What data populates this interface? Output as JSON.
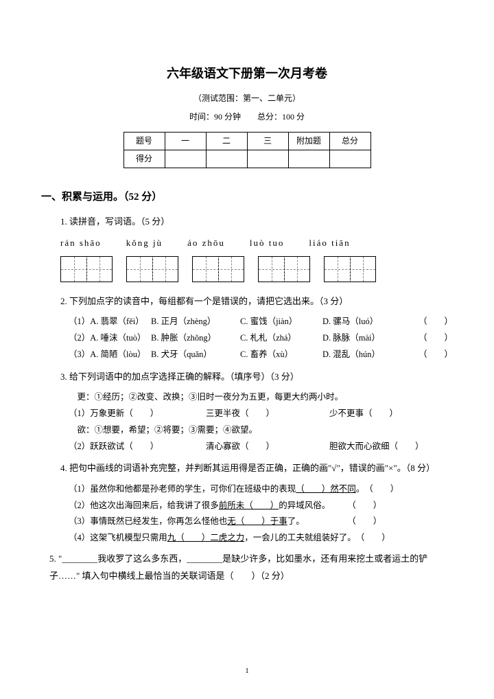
{
  "title": "六年级语文下册第一次月考卷",
  "subtitle": "（测试范围：第一、二单元）",
  "meta": "时间：90 分钟　　总分：100 分",
  "score_table": {
    "headers": [
      "题号",
      "一",
      "二",
      "三",
      "附加题",
      "总分"
    ],
    "row_label": "得分"
  },
  "section1": "一、积累与运用。（52 分）",
  "q1": {
    "text": "1. 读拼音，写词语。（5 分）",
    "pinyin": [
      "rán  shāo",
      "kǒng  jù",
      "áo  zhōu",
      "luò  tuo",
      "liáo  tiān"
    ]
  },
  "q2": {
    "text": "2. 下列加点字的读音中，每组都有一个是错误的，请把它选出来。（3 分）",
    "rows": [
      {
        "a": "（1）A. 翡翠（fěi）",
        "b": "B. 正月（zhèng）",
        "c": "C. 蜜饯（jiàn）",
        "d": "D. 骡马（luó）",
        "p": "（　　）"
      },
      {
        "a": "（2）A. 唾沫（tuò）",
        "b": "B. 肿胀（zhǒng）",
        "c": "C. 札札（zhá）",
        "d": "D. 脉脉（mài）",
        "p": "（　　）"
      },
      {
        "a": "（3）A. 简陋（lòu）",
        "b": "B. 犬牙（quǎn）",
        "c": "C. 畜养（xù）",
        "d": "D. 混乱（hún）",
        "p": "（　　）"
      }
    ]
  },
  "q3": {
    "text": "3. 给下列词语中的加点字选择正确的解释。（填序号）（3 分）",
    "line1": "　更：①经历；②改变、改换；③旧时一夜分为五更，每更大约两小时。",
    "fill1": {
      "a": "（1）万象更新（　　）",
      "b": "三更半夜（　　）",
      "c": "少不更事（　　）"
    },
    "line2": "　欲：①想要，希望；②将要；③需要；④欲望。",
    "fill2": {
      "a": "（2）跃跃欲试（　　）",
      "b": "清心寡欲（　　）",
      "c": "胆欲大而心欲细（　　）"
    }
  },
  "q4": {
    "text": "4. 把句中画线的词语补充完整，并判断其运用得是否正确，正确的画\"√\"，错误的画\"×\"。（8 分）",
    "items": [
      "（1）虽然你和他都是孙老师的学生，可你们在班级中的表现<u>（　　）然不同</u>。　（　　）",
      "（2）他这次出海回来后，给我讲了很多<u>前所未（　　）</u>的异域风俗。　　　（　　）",
      "（3）事情既然已经发生，你再怎么怪他也<u>无（　　）于事</u>了。　　　　　　（　　）",
      "（4）这架飞机模型只需用<u>九（　　）二虎之力</u>，一会儿的工夫就组装好了。　（　　）"
    ]
  },
  "q5": "5. \"________我收罗了这么多东西，________是缺少许多，比如墨水，还有用来挖土或者运土的铲子……\" 填入句中横线上最恰当的关联词语是（　　）（2 分）",
  "pagenum": "1"
}
